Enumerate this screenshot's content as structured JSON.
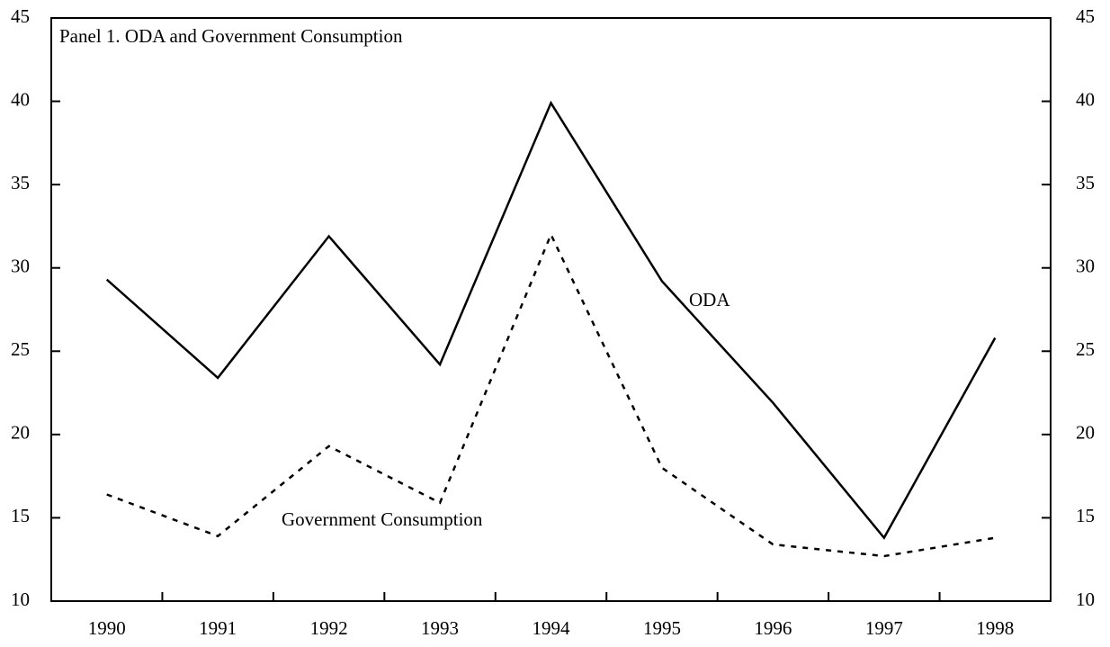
{
  "chart_data": {
    "type": "line",
    "title": "Panel 1. ODA and Government Consumption",
    "categories": [
      "1990",
      "1991",
      "1992",
      "1993",
      "1994",
      "1995",
      "1996",
      "1997",
      "1998"
    ],
    "series": [
      {
        "name": "ODA",
        "color": "#000000",
        "style": "solid",
        "values": [
          29.3,
          23.4,
          31.9,
          24.2,
          39.9,
          29.2,
          21.9,
          13.8,
          25.8
        ]
      },
      {
        "name": "Government Consumption",
        "color": "#000000",
        "style": "dotted",
        "values": [
          16.4,
          13.9,
          19.3,
          15.9,
          32.0,
          18.0,
          13.4,
          12.7,
          13.8
        ]
      }
    ],
    "ylim": [
      10,
      45
    ],
    "yticks": [
      10,
      15,
      20,
      25,
      30,
      35,
      40,
      45
    ],
    "y2lim": [
      10,
      45
    ],
    "y2ticks": [
      10,
      15,
      20,
      25,
      30,
      35,
      40,
      45
    ],
    "grid": false
  }
}
